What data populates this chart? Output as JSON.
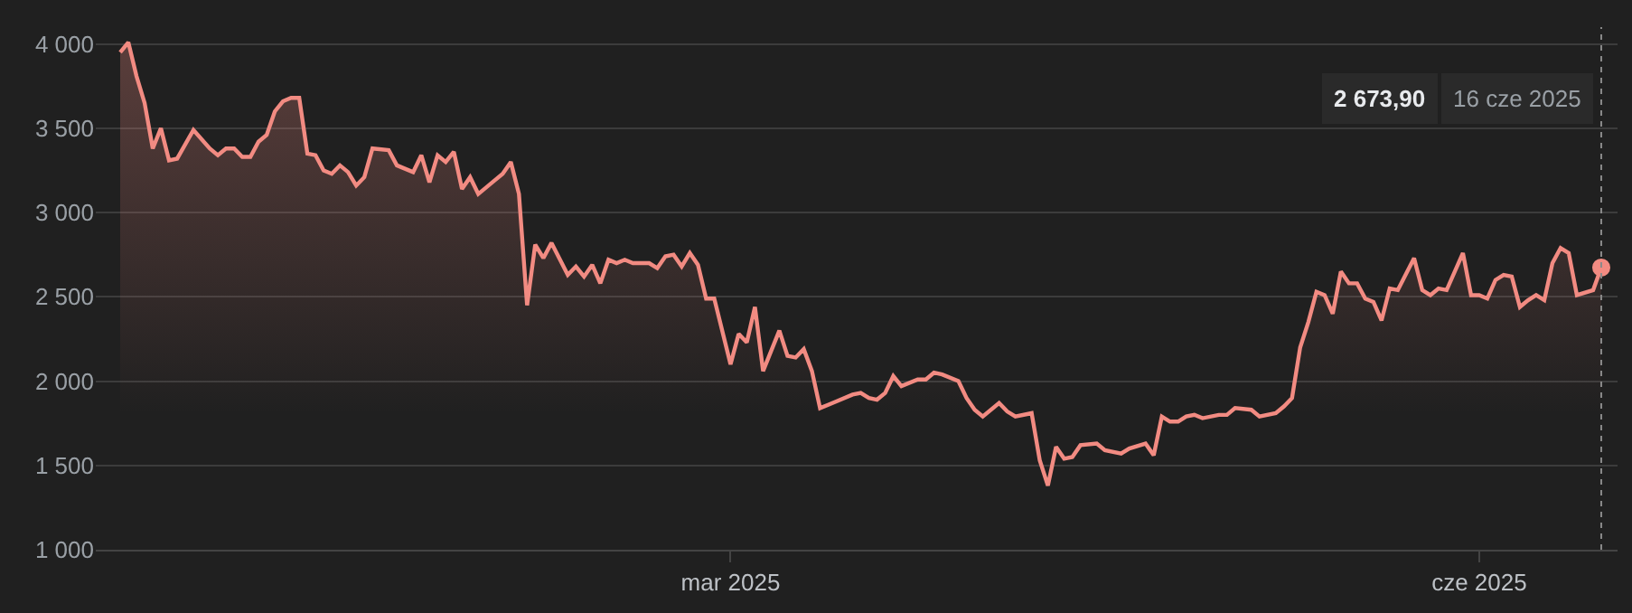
{
  "chart_data": {
    "type": "area",
    "x": [
      "2024-12-16",
      "2024-12-17",
      "2024-12-18",
      "2024-12-19",
      "2024-12-20",
      "2024-12-21",
      "2024-12-22",
      "2024-12-23",
      "2024-12-25",
      "2024-12-27",
      "2024-12-28",
      "2024-12-29",
      "2024-12-30",
      "2024-12-31",
      "2025-01-01",
      "2025-01-02",
      "2025-01-03",
      "2025-01-04",
      "2025-01-05",
      "2025-01-06",
      "2025-01-07",
      "2025-01-08",
      "2025-01-09",
      "2025-01-10",
      "2025-01-11",
      "2025-01-12",
      "2025-01-13",
      "2025-01-14",
      "2025-01-15",
      "2025-01-16",
      "2025-01-18",
      "2025-01-19",
      "2025-01-20",
      "2025-01-21",
      "2025-01-22",
      "2025-01-23",
      "2025-01-24",
      "2025-01-25",
      "2025-01-26",
      "2025-01-27",
      "2025-01-28",
      "2025-01-29",
      "2025-01-31",
      "2025-02-01",
      "2025-02-02",
      "2025-02-03",
      "2025-02-04",
      "2025-02-05",
      "2025-02-06",
      "2025-02-07",
      "2025-02-09",
      "2025-02-10",
      "2025-02-11",
      "2025-02-12",
      "2025-02-13",
      "2025-02-14",
      "2025-02-15",
      "2025-02-16",
      "2025-02-17",
      "2025-02-19",
      "2025-02-20",
      "2025-02-21",
      "2025-02-22",
      "2025-02-23",
      "2025-02-24",
      "2025-02-25",
      "2025-02-26",
      "2025-02-27",
      "2025-03-01",
      "2025-03-02",
      "2025-03-03",
      "2025-03-04",
      "2025-03-05",
      "2025-03-07",
      "2025-03-08",
      "2025-03-09",
      "2025-03-10",
      "2025-03-11",
      "2025-03-12",
      "2025-03-13",
      "2025-03-14",
      "2025-03-16",
      "2025-03-17",
      "2025-03-18",
      "2025-03-19",
      "2025-03-20",
      "2025-03-21",
      "2025-03-22",
      "2025-03-24",
      "2025-03-25",
      "2025-03-26",
      "2025-03-27",
      "2025-03-29",
      "2025-03-30",
      "2025-03-31",
      "2025-04-01",
      "2025-04-03",
      "2025-04-04",
      "2025-04-05",
      "2025-04-07",
      "2025-04-08",
      "2025-04-09",
      "2025-04-10",
      "2025-04-11",
      "2025-04-12",
      "2025-04-13",
      "2025-04-15",
      "2025-04-16",
      "2025-04-18",
      "2025-04-19",
      "2025-04-21",
      "2025-04-22",
      "2025-04-23",
      "2025-04-24",
      "2025-04-25",
      "2025-04-26",
      "2025-04-27",
      "2025-04-28",
      "2025-04-30",
      "2025-05-01",
      "2025-05-02",
      "2025-05-04",
      "2025-05-05",
      "2025-05-07",
      "2025-05-08",
      "2025-05-09",
      "2025-05-10",
      "2025-05-11",
      "2025-05-12",
      "2025-05-13",
      "2025-05-14",
      "2025-05-15",
      "2025-05-16",
      "2025-05-17",
      "2025-05-18",
      "2025-05-19",
      "2025-05-20",
      "2025-05-21",
      "2025-05-22",
      "2025-05-24",
      "2025-05-25",
      "2025-05-26",
      "2025-05-27",
      "2025-05-28",
      "2025-05-30",
      "2025-05-31",
      "2025-06-01",
      "2025-06-02",
      "2025-06-03",
      "2025-06-04",
      "2025-06-05",
      "2025-06-06",
      "2025-06-07",
      "2025-06-08",
      "2025-06-09",
      "2025-06-10",
      "2025-06-11",
      "2025-06-12",
      "2025-06-13",
      "2025-06-15",
      "2025-06-16"
    ],
    "series": [
      {
        "color": "#f28b82",
        "values": [
          3950,
          4010,
          3810,
          3650,
          3380,
          3500,
          3310,
          3320,
          3490,
          3380,
          3340,
          3380,
          3380,
          3330,
          3330,
          3420,
          3460,
          3600,
          3660,
          3680,
          3680,
          3350,
          3340,
          3250,
          3230,
          3280,
          3240,
          3160,
          3210,
          3380,
          3370,
          3280,
          3260,
          3240,
          3340,
          3180,
          3340,
          3300,
          3360,
          3140,
          3210,
          3110,
          3190,
          3230,
          3300,
          3110,
          2450,
          2810,
          2730,
          2820,
          2630,
          2680,
          2620,
          2690,
          2580,
          2720,
          2700,
          2720,
          2700,
          2700,
          2670,
          2740,
          2750,
          2680,
          2760,
          2690,
          2490,
          2490,
          2100,
          2280,
          2230,
          2440,
          2060,
          2300,
          2150,
          2140,
          2190,
          2060,
          1840,
          1860,
          1880,
          1920,
          1930,
          1900,
          1890,
          1930,
          2030,
          1970,
          2010,
          2010,
          2050,
          2040,
          2000,
          1900,
          1830,
          1790,
          1870,
          1820,
          1790,
          1810,
          1530,
          1380,
          1610,
          1540,
          1550,
          1620,
          1630,
          1590,
          1570,
          1600,
          1630,
          1560,
          1790,
          1760,
          1760,
          1790,
          1800,
          1780,
          1800,
          1800,
          1840,
          1830,
          1790,
          1810,
          1850,
          1900,
          2200,
          2350,
          2530,
          2510,
          2400,
          2650,
          2580,
          2580,
          2490,
          2470,
          2360,
          2550,
          2540,
          2730,
          2540,
          2510,
          2550,
          2540,
          2760,
          2510,
          2510,
          2490,
          2600,
          2630,
          2620,
          2440,
          2480,
          2510,
          2480,
          2700,
          2790,
          2760,
          2510,
          2540,
          2673.9
        ]
      }
    ],
    "xlim": [
      "2024-12-13",
      "2025-06-18"
    ],
    "xticks": [
      {
        "value": "2025-03-01",
        "label": "mar 2025"
      },
      {
        "value": "2025-06-01",
        "label": "cze 2025"
      }
    ],
    "ylim": [
      1000,
      4100
    ],
    "yticks": [
      {
        "value": 1000,
        "label": "1 000"
      },
      {
        "value": 1500,
        "label": "1 500"
      },
      {
        "value": 2000,
        "label": "2 000"
      },
      {
        "value": 2500,
        "label": "2 500"
      },
      {
        "value": 3000,
        "label": "3 000"
      },
      {
        "value": 3500,
        "label": "3 500"
      },
      {
        "value": 4000,
        "label": "4 000"
      }
    ],
    "grid": "y",
    "ref_lines": [
      {
        "axis": "x",
        "value": "2025-06-16",
        "color": "#8a8a8a",
        "line_style": "dotted"
      }
    ],
    "annotations": [
      "2 673,90",
      "16 cze 2025"
    ]
  }
}
